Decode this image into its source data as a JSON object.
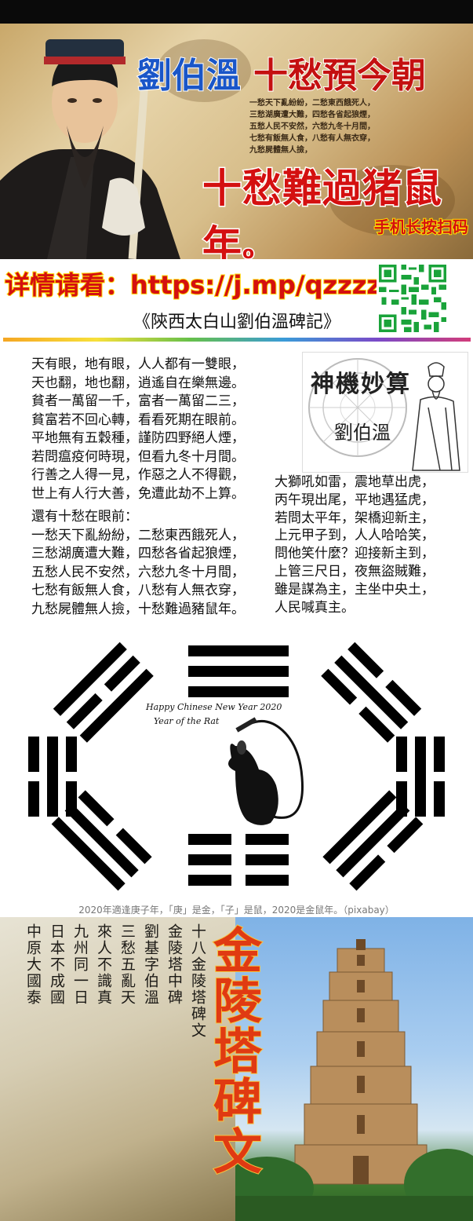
{
  "banner": {
    "name": "劉伯溫",
    "headline": "十愁預今朝",
    "poem_lines": [
      "一愁天下亂紛紛，二愁東西餓死人，",
      "三愁湖廣遭大難，四愁各省起狼煙，",
      "五愁人民不安然，六愁九冬十月間，",
      "七愁有飯無人食，八愁有人無衣穿，",
      "九愁屍體無人撿，"
    ],
    "main": "十愁難過猪鼠年",
    "main_suffix": "o",
    "scan_hint": "手机长按扫码"
  },
  "link": {
    "prefix": "详情请看：",
    "url": "https://j.mp/qzzzzz"
  },
  "subtitle": "《陝西太白山劉伯溫碑記》",
  "poem_left": [
    "天有眼，地有眼，人人都有一雙眼，",
    "天也翻，地也翻，逍遙自在樂無邊。",
    "貧者一萬留一千，富者一萬留二三，",
    "貧富若不回心轉，看看死期在眼前。",
    "平地無有五穀種，謹防四野絕人煙，",
    "若問瘟疫何時現，但看九冬十月間。",
    "行善之人得一見，作惡之人不得觀，",
    "世上有人行大善，免遭此劫不上算。",
    "還有十愁在眼前：",
    "一愁天下亂紛紛，二愁東西餓死人，",
    "三愁湖廣遭大難，四愁各省起狼煙，",
    "五愁人民不安然，六愁九冬十月間，",
    "七愁有飯無人食，八愁有人無衣穿，",
    "九愁屍體無人撿，十愁難過豬鼠年。"
  ],
  "card": {
    "title": "神機妙算",
    "name": "劉伯溫"
  },
  "poem_right": [
    "大獅吼如雷，震地草出虎，",
    "丙午現出尾，平地遇猛虎，",
    "若問太平年，架橋迎新主，",
    "上元甲子到，人人哈哈笑，",
    "問他笑什麼？迎接新主到，",
    "上管三尺日，夜無盜賊難，",
    "雖是謀為主，主坐中央土，",
    "人民喊真主。"
  ],
  "bagua": {
    "line1": "Happy Chinese New Year 2020",
    "line2": "Year of the Rat"
  },
  "caption": "2020年適逢庚子年，「庚」是金，「子」是鼠，2020是金鼠年。（pixabay）",
  "bottom": {
    "big_title": "金陵塔碑文",
    "manuscript_columns": [
      "十八金陵塔碑文",
      "金陵塔中碑",
      "劉基字伯溫",
      "三愁五亂天",
      "來人不識真",
      "九州同一日",
      "日本不成國",
      "中原大國泰"
    ]
  },
  "colors": {
    "red": "#d41010",
    "blue": "#1a56c8",
    "gold": "#ffd700"
  }
}
